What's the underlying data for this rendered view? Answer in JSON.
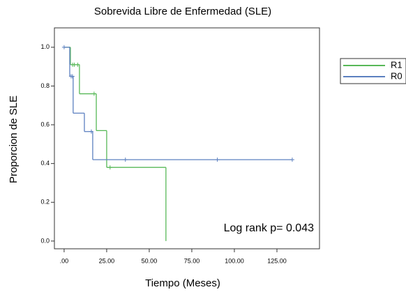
{
  "chart_data": {
    "type": "survival-step",
    "title": "Sobrevida Libre de Enfermedad (SLE)",
    "x_label": "Tiempo (Meses)",
    "y_label": "Proporcion de SLE",
    "annotation": "Log rank p= 0.043",
    "xlim": [
      -5.7,
      150
    ],
    "ylim": [
      -0.04,
      1.1
    ],
    "xticks": [
      {
        "value": 0,
        "label": ".00"
      },
      {
        "value": 25,
        "label": "25.00"
      },
      {
        "value": 50,
        "label": "50.00"
      },
      {
        "value": 75,
        "label": "75.00"
      },
      {
        "value": 100,
        "label": "100.00"
      },
      {
        "value": 125,
        "label": "125.00"
      }
    ],
    "yticks": [
      {
        "value": 0,
        "label": "0.0"
      },
      {
        "value": 0.2,
        "label": "0.2"
      },
      {
        "value": 0.4,
        "label": "0.4"
      },
      {
        "value": 0.6,
        "label": "0.6"
      },
      {
        "value": 0.8,
        "label": "0.8"
      },
      {
        "value": 1,
        "label": "1.0"
      }
    ],
    "series": [
      {
        "name": "R1",
        "color": "#57b857",
        "x": [
          0,
          3.7,
          9,
          18.9,
          25,
          59.8
        ],
        "values": [
          1.0,
          0.91,
          0.76,
          0.57,
          0.38,
          0.0
        ],
        "censor_x": [
          5,
          6,
          8,
          17.6,
          27
        ],
        "censor_values": [
          0.91,
          0.91,
          0.91,
          0.76,
          0.38
        ]
      },
      {
        "name": "R0",
        "color": "#5c80c0",
        "x": [
          0,
          3.3,
          5.3,
          11.9,
          16.8
        ],
        "values": [
          1.0,
          0.85,
          0.66,
          0.565,
          0.42
        ],
        "censor_x": [
          0,
          4.1,
          4.9,
          16,
          36,
          90,
          134
        ],
        "censor_values": [
          1.0,
          0.85,
          0.85,
          0.565,
          0.42,
          0.42,
          0.42
        ]
      }
    ]
  }
}
